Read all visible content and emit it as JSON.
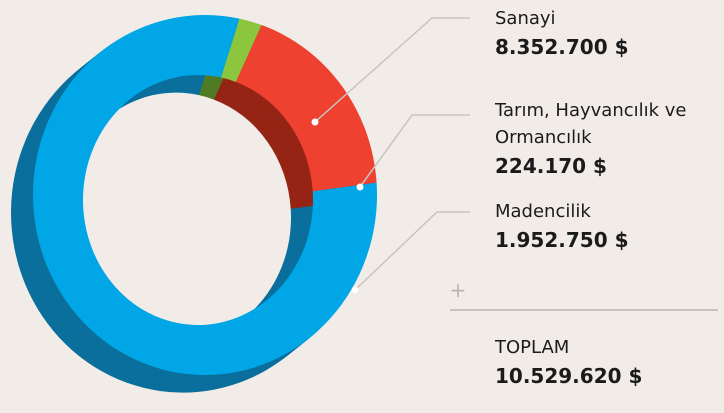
{
  "chart_data": {
    "type": "pie",
    "donut": true,
    "categories": [
      "Sanayi",
      "Tarım, Hayvancılık ve Ormancılık",
      "Madencilik"
    ],
    "values": [
      8352700,
      224170,
      1952750
    ],
    "value_labels": [
      "8.352.700 $",
      "224.170 $",
      "1.952.750 $"
    ],
    "colors": [
      "#00a6e6",
      "#8cc63f",
      "#ee4130"
    ],
    "side_colors": [
      "#0b6f9c",
      "#4f7b24",
      "#952414"
    ],
    "total_label": "TOPLAM",
    "total": 10529620,
    "total_value_label": "10.529.620 $"
  }
}
